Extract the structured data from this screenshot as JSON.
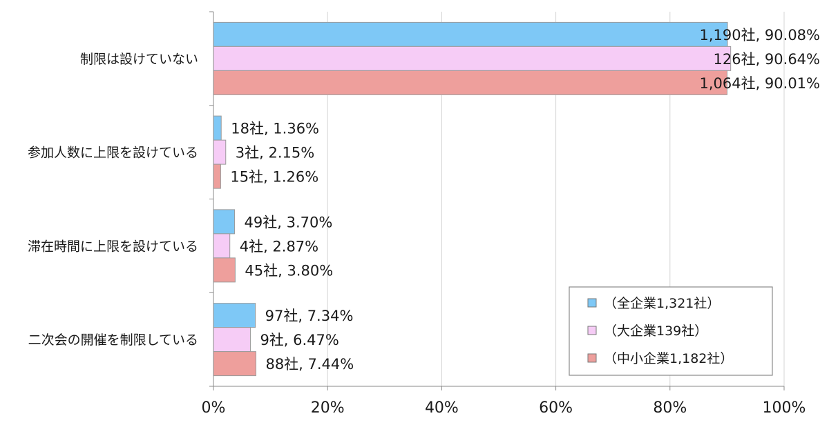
{
  "chart_data": {
    "type": "bar",
    "orientation": "horizontal",
    "categories": [
      "制限は設けていない",
      "参加人数に上限を設けている",
      "滞在時間に上限を設けている",
      "二次会の開催を制限している"
    ],
    "series": [
      {
        "name": "（全企業1,321社）",
        "color": "#7ec8f6",
        "values": [
          90.08,
          1.36,
          3.7,
          7.34
        ],
        "labels": [
          "1,190社, 90.08%",
          "18社, 1.36%",
          "49社, 3.70%",
          "97社, 7.34%"
        ]
      },
      {
        "name": "（大企業139社）",
        "color": "#f6ccf6",
        "values": [
          90.64,
          2.15,
          2.87,
          6.47
        ],
        "labels": [
          "126社, 90.64%",
          "3社, 2.15%",
          "4社, 2.87%",
          "9社, 6.47%"
        ]
      },
      {
        "name": "（中小企業1,182社）",
        "color": "#ee9f9c",
        "values": [
          90.01,
          1.26,
          3.8,
          7.44
        ],
        "labels": [
          "1,064社, 90.01%",
          "15社, 1.26%",
          "45社, 3.80%",
          "88社, 7.44%"
        ]
      }
    ],
    "xlim": [
      0,
      100
    ],
    "x_ticks": [
      "0%",
      "20%",
      "40%",
      "60%",
      "80%",
      "100%"
    ],
    "grid": true,
    "legend_position": "bottom-right"
  }
}
